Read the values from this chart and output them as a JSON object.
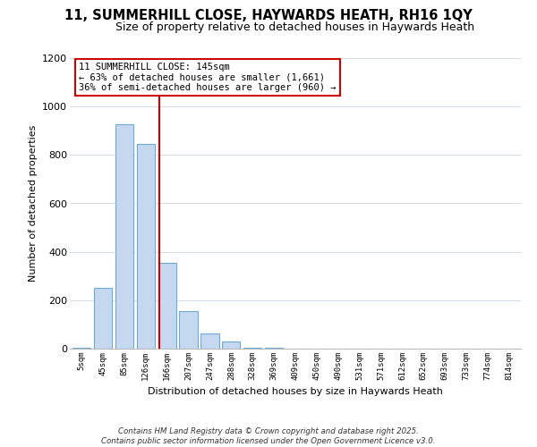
{
  "title": "11, SUMMERHILL CLOSE, HAYWARDS HEATH, RH16 1QY",
  "subtitle": "Size of property relative to detached houses in Haywards Heath",
  "xlabel": "Distribution of detached houses by size in Haywards Heath",
  "ylabel": "Number of detached properties",
  "bar_labels": [
    "5sqm",
    "45sqm",
    "85sqm",
    "126sqm",
    "166sqm",
    "207sqm",
    "247sqm",
    "288sqm",
    "328sqm",
    "369sqm",
    "409sqm",
    "450sqm",
    "490sqm",
    "531sqm",
    "571sqm",
    "612sqm",
    "652sqm",
    "693sqm",
    "733sqm",
    "774sqm",
    "814sqm"
  ],
  "bar_values": [
    5,
    250,
    925,
    845,
    355,
    155,
    62,
    28,
    5,
    2,
    1,
    0,
    0,
    0,
    0,
    0,
    0,
    0,
    0,
    0,
    0
  ],
  "bar_color": "#c5d8f0",
  "bar_edge_color": "#6aaad4",
  "vline_x_index": 3.63,
  "vline_color": "#cc0000",
  "ylim": [
    0,
    1200
  ],
  "yticks": [
    0,
    200,
    400,
    600,
    800,
    1000,
    1200
  ],
  "annotation_title": "11 SUMMERHILL CLOSE: 145sqm",
  "annotation_line1": "← 63% of detached houses are smaller (1,661)",
  "annotation_line2": "36% of semi-detached houses are larger (960) →",
  "annotation_box_color": "#ffffff",
  "annotation_box_edge": "#cc0000",
  "footer1": "Contains HM Land Registry data © Crown copyright and database right 2025.",
  "footer2": "Contains public sector information licensed under the Open Government Licence v3.0.",
  "title_fontsize": 10.5,
  "subtitle_fontsize": 9,
  "background_color": "#ffffff",
  "grid_color": "#d0dcea"
}
